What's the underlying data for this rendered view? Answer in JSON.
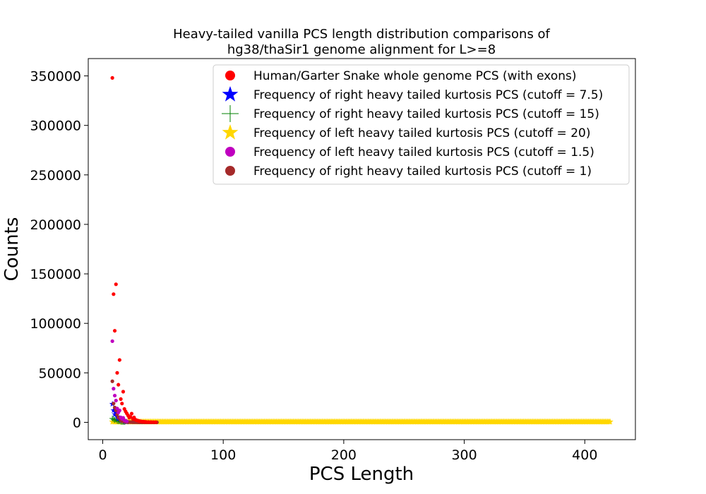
{
  "chart_data": {
    "type": "scatter",
    "title": "Heavy-tailed vanilla PCS length distribution comparisons of\nhg38/thaSir1 genome alignment for L>=8",
    "xlabel": "PCS Length",
    "ylabel": "Counts",
    "xlim": [
      -12,
      442
    ],
    "ylim": [
      -17500,
      367500
    ],
    "xticks": [
      0,
      100,
      200,
      300,
      400
    ],
    "yticks": [
      0,
      50000,
      100000,
      150000,
      200000,
      250000,
      300000,
      350000
    ],
    "xtick_labels": [
      "0",
      "100",
      "200",
      "300",
      "400"
    ],
    "ytick_labels": [
      "0",
      "50000",
      "100000",
      "150000",
      "200000",
      "250000",
      "300000",
      "350000"
    ],
    "legend_position": "upper right",
    "grid": false,
    "series": [
      {
        "name": "Human/Garter Snake whole genome PCS (with exons)",
        "marker": "circle",
        "color": "#ff0000",
        "points": [
          [
            8,
            348000
          ],
          [
            9,
            129500
          ],
          [
            10,
            92500
          ],
          [
            11,
            139500
          ],
          [
            12,
            50000
          ],
          [
            13,
            38000
          ],
          [
            14,
            63000
          ],
          [
            15,
            23500
          ],
          [
            16,
            19000
          ],
          [
            17,
            31000
          ],
          [
            18,
            13500
          ],
          [
            19,
            11000
          ],
          [
            20,
            9000
          ],
          [
            21,
            7000
          ],
          [
            22,
            4800
          ],
          [
            23,
            5500
          ],
          [
            24,
            8800
          ],
          [
            25,
            3500
          ],
          [
            26,
            5000
          ],
          [
            27,
            2800
          ],
          [
            28,
            2200
          ],
          [
            29,
            1800
          ],
          [
            30,
            1400
          ],
          [
            31,
            1100
          ],
          [
            32,
            900
          ],
          [
            33,
            700
          ],
          [
            34,
            600
          ],
          [
            35,
            500
          ],
          [
            36,
            400
          ],
          [
            38,
            300
          ],
          [
            40,
            250
          ],
          [
            42,
            200
          ],
          [
            44,
            150
          ]
        ]
      },
      {
        "name": "Frequency of right heavy tailed kurtosis PCS (cutoff = 7.5)",
        "marker": "star",
        "color": "#0000ff",
        "points": [
          [
            8,
            18500
          ],
          [
            9,
            12000
          ],
          [
            10,
            8000
          ],
          [
            11,
            9500
          ],
          [
            12,
            5500
          ],
          [
            13,
            3500
          ],
          [
            14,
            4200
          ],
          [
            15,
            2200
          ],
          [
            16,
            1600
          ],
          [
            17,
            2000
          ],
          [
            18,
            900
          ],
          [
            19,
            600
          ],
          [
            20,
            400
          ]
        ]
      },
      {
        "name": "Frequency of right heavy tailed kurtosis PCS (cutoff = 15)",
        "marker": "plus",
        "color": "#008000",
        "points": [
          [
            8,
            4000
          ],
          [
            9,
            3000
          ],
          [
            10,
            2400
          ],
          [
            11,
            2800
          ],
          [
            12,
            1500
          ],
          [
            13,
            1100
          ],
          [
            14,
            1300
          ],
          [
            15,
            700
          ],
          [
            16,
            500
          ],
          [
            17,
            600
          ],
          [
            18,
            300
          ]
        ]
      },
      {
        "name": "Frequency of left heavy tailed kurtosis PCS (cutoff = 20)",
        "marker": "star",
        "color": "#ffd700",
        "range": {
          "start": 8,
          "end": 421,
          "step": 1,
          "value": 600
        }
      },
      {
        "name": "Frequency of left heavy tailed kurtosis PCS (cutoff = 1.5)",
        "marker": "circle",
        "color": "#bf00bf",
        "points": [
          [
            8,
            82000
          ],
          [
            9,
            34000
          ],
          [
            10,
            27000
          ],
          [
            11,
            22000
          ],
          [
            12,
            14000
          ],
          [
            13,
            10000
          ],
          [
            14,
            12000
          ],
          [
            15,
            5000
          ],
          [
            16,
            3500
          ],
          [
            17,
            4500
          ],
          [
            18,
            2000
          ],
          [
            19,
            1500
          ],
          [
            20,
            1000
          ]
        ]
      },
      {
        "name": "Frequency of right heavy tailed kurtosis PCS (cutoff = 1)",
        "marker": "circle",
        "color": "#a52a2a",
        "points": [
          [
            8,
            41500
          ],
          [
            9,
            19000
          ],
          [
            10,
            15000
          ],
          [
            11,
            12000
          ],
          [
            12,
            8000
          ],
          [
            13,
            5000
          ],
          [
            14,
            4000
          ],
          [
            15,
            2000
          ],
          [
            16,
            1500
          ],
          [
            17,
            1200
          ],
          [
            18,
            900
          ],
          [
            19,
            700
          ],
          [
            20,
            600
          ],
          [
            21,
            400
          ],
          [
            22,
            300
          ],
          [
            23,
            250
          ],
          [
            24,
            200
          ],
          [
            25,
            150
          ],
          [
            26,
            120
          ],
          [
            27,
            100
          ],
          [
            28,
            90
          ],
          [
            29,
            80
          ],
          [
            30,
            70
          ],
          [
            31,
            60
          ],
          [
            32,
            50
          ],
          [
            33,
            40
          ],
          [
            34,
            35
          ],
          [
            35,
            30
          ],
          [
            36,
            25
          ],
          [
            37,
            20
          ],
          [
            38,
            18
          ],
          [
            39,
            15
          ],
          [
            40,
            12
          ],
          [
            41,
            10
          ],
          [
            42,
            8
          ],
          [
            43,
            6
          ],
          [
            44,
            5
          ],
          [
            45,
            4
          ]
        ]
      }
    ]
  }
}
